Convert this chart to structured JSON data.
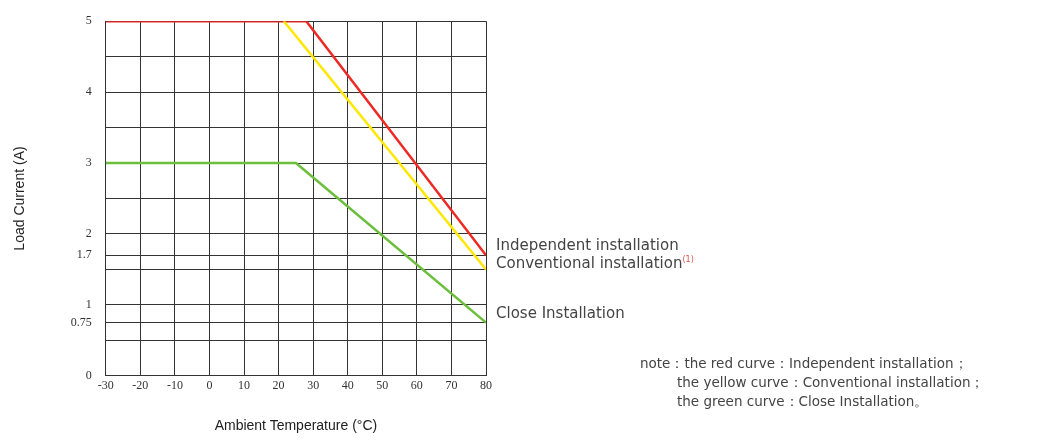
{
  "chart_data": {
    "type": "line",
    "xlabel": "Ambient Temperature (°C)",
    "ylabel": "Load Current (A)",
    "xlim": [
      -30,
      80
    ],
    "xticks": [
      -30,
      -20,
      -10,
      0,
      10,
      20,
      30,
      40,
      50,
      60,
      70,
      80
    ],
    "ylim": [
      0,
      5
    ],
    "yticks": [
      0,
      {
        "value": 0.5,
        "label": null
      },
      0.75,
      1,
      {
        "value": 1.5,
        "label": null
      },
      1.7,
      2,
      {
        "value": 2.5,
        "label": null
      },
      3,
      {
        "value": 3.5,
        "label": null
      },
      4,
      {
        "value": 4.5,
        "label": null
      },
      5
    ],
    "grid": true,
    "legend": false,
    "marker": "none",
    "line_style": "solid",
    "series": [
      {
        "name": "Independent installation",
        "color": "#ee2a24",
        "x": [
          -30,
          28,
          80
        ],
        "values": [
          5,
          5,
          1.7
        ]
      },
      {
        "name": "Conventional installation$^{(1)}$",
        "color": "#ffe800",
        "x": [
          21.5,
          80
        ],
        "values": [
          5,
          1.5
        ]
      },
      {
        "name": "Close Installation",
        "color": "#6cbf3c",
        "x": [
          -30,
          25,
          80
        ],
        "values": [
          3,
          3,
          0.75
        ]
      }
    ],
    "annotations": [
      "note：the red curve：Independent installation；",
      "the yellow curve：Conventional installation；",
      "the green curve：Close Installation。"
    ]
  }
}
